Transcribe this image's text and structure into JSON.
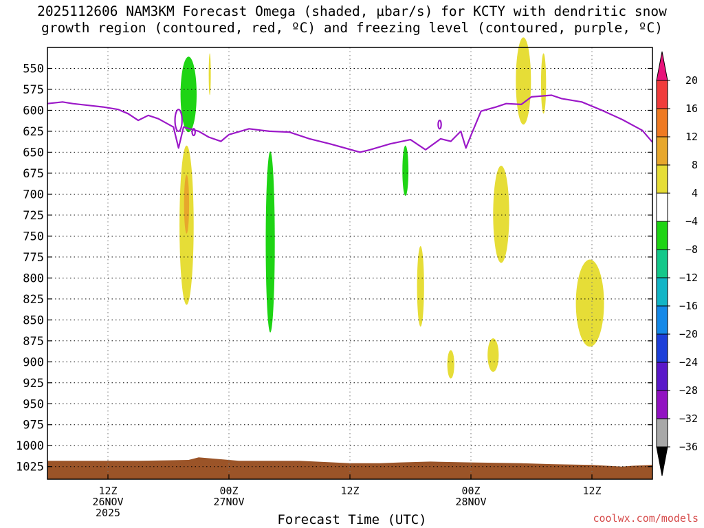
{
  "header": {
    "title_line1": "2025112606 NAM3KM Forecast Omega (shaded, µbar/s) for KCTY with dendritic snow",
    "title_line2": "growth region (contoured, red, ºC) and freezing level (contoured, purple, ºC)"
  },
  "footer": {
    "xaxis_title": "Forecast Time (UTC)",
    "credit": "coolwx.com/models"
  },
  "chart_data": {
    "type": "time-height cross-section",
    "title": "2025112606 NAM3KM Forecast Omega (shaded, µbar/s) for KCTY with dendritic snow growth region (contoured, red, ºC) and freezing level (contoured, purple, ºC)",
    "xlabel": "Forecast Time (UTC)",
    "ylabel": "",
    "x_range_hours": [
      0,
      60
    ],
    "x_ticks": [
      {
        "hour": 6,
        "lines": [
          "12Z",
          "26NOV",
          "2025"
        ]
      },
      {
        "hour": 18,
        "lines": [
          "00Z",
          "27NOV"
        ]
      },
      {
        "hour": 30,
        "lines": [
          "12Z"
        ]
      },
      {
        "hour": 42,
        "lines": [
          "00Z",
          "28NOV"
        ]
      },
      {
        "hour": 54,
        "lines": [
          "12Z"
        ]
      }
    ],
    "y_range_mb": [
      525,
      1040
    ],
    "y_ticks": [
      550,
      575,
      600,
      625,
      650,
      675,
      700,
      725,
      750,
      775,
      800,
      825,
      850,
      875,
      900,
      925,
      950,
      975,
      1000,
      1025
    ],
    "grid": "dotted",
    "colorbar": {
      "position": "right",
      "labels": [
        20,
        16,
        12,
        8,
        4,
        -4,
        -8,
        -12,
        -16,
        -20,
        -24,
        -28,
        -32,
        -36
      ],
      "colors": [
        "#e8137a",
        "#f03c3c",
        "#ef7a22",
        "#e7a72c",
        "#e6dd37",
        "#ffffff",
        "#1ed414",
        "#14c88a",
        "#12b5c6",
        "#1589e8",
        "#1d3fd9",
        "#5a18c9",
        "#9212c2",
        "#a8a8a8",
        "#000000"
      ]
    },
    "freezing_level": {
      "color": "#9b18c8",
      "points": [
        [
          0,
          592
        ],
        [
          1.5,
          590
        ],
        [
          2.5,
          592
        ],
        [
          5.5,
          596
        ],
        [
          7,
          599
        ],
        [
          8,
          604
        ],
        [
          9,
          612
        ],
        [
          10,
          606
        ],
        [
          11,
          610
        ],
        [
          12.5,
          620
        ],
        [
          13,
          645
        ],
        [
          13.5,
          620
        ],
        [
          15,
          625
        ],
        [
          16,
          632
        ],
        [
          17.2,
          637
        ],
        [
          18,
          629
        ],
        [
          20,
          622
        ],
        [
          22,
          625
        ],
        [
          24,
          626
        ],
        [
          26,
          634
        ],
        [
          28,
          640
        ],
        [
          31,
          650
        ],
        [
          32,
          647
        ],
        [
          34,
          640
        ],
        [
          36,
          635
        ],
        [
          37.5,
          647
        ],
        [
          39,
          634
        ],
        [
          40,
          637
        ],
        [
          41,
          625
        ],
        [
          41.5,
          645
        ],
        [
          42,
          630
        ],
        [
          43,
          601
        ],
        [
          44.5,
          596
        ],
        [
          45.5,
          592
        ],
        [
          47,
          593
        ],
        [
          48,
          584
        ],
        [
          50,
          582
        ],
        [
          51,
          586
        ],
        [
          53,
          590
        ],
        [
          55,
          600
        ],
        [
          57,
          611
        ],
        [
          59,
          624
        ],
        [
          60,
          638
        ]
      ],
      "rings": [
        {
          "t": 13.0,
          "p": 612,
          "rt": 0.35,
          "rp": 13
        },
        {
          "t": 14.5,
          "p": 626,
          "rt": 0.15,
          "rp": 4
        },
        {
          "t": 38.9,
          "p": 617,
          "rt": 0.15,
          "rp": 5
        }
      ]
    },
    "omega_regions": [
      {
        "value": -6,
        "color": "#1ed414",
        "cx": 14.0,
        "cp": 581,
        "rt": 0.8,
        "rp": 45
      },
      {
        "value": -6,
        "color": "#1ed414",
        "cx": 22.1,
        "cp": 757,
        "rt": 0.45,
        "rp": 108
      },
      {
        "value": -6,
        "color": "#1ed414",
        "cx": 35.5,
        "cp": 672,
        "rt": 0.3,
        "rp": 30
      },
      {
        "value": 6,
        "color": "#e6dd37",
        "cx": 13.8,
        "cp": 737,
        "rt": 0.7,
        "rp": 95
      },
      {
        "value": 10,
        "color": "#e7a72c",
        "cx": 13.8,
        "cp": 712,
        "rt": 0.25,
        "rp": 35
      },
      {
        "value": 6,
        "color": "#e6dd37",
        "cx": 16.1,
        "cp": 557,
        "rt": 0.1,
        "rp": 25
      },
      {
        "value": 6,
        "color": "#e6dd37",
        "cx": 37.0,
        "cp": 810,
        "rt": 0.35,
        "rp": 48
      },
      {
        "value": 6,
        "color": "#e6dd37",
        "cx": 40.0,
        "cp": 903,
        "rt": 0.35,
        "rp": 17
      },
      {
        "value": 6,
        "color": "#e6dd37",
        "cx": 45.0,
        "cp": 724,
        "rt": 0.8,
        "rp": 58
      },
      {
        "value": 6,
        "color": "#e6dd37",
        "cx": 44.2,
        "cp": 892,
        "rt": 0.55,
        "rp": 20
      },
      {
        "value": 6,
        "color": "#e6dd37",
        "cx": 47.2,
        "cp": 565,
        "rt": 0.75,
        "rp": 52
      },
      {
        "value": 6,
        "color": "#e6dd37",
        "cx": 49.2,
        "cp": 568,
        "rt": 0.25,
        "rp": 36
      },
      {
        "value": 6,
        "color": "#e6dd37",
        "cx": 53.8,
        "cp": 830,
        "rt": 1.4,
        "rp": 52
      }
    ],
    "terrain": {
      "color": "#9b5428",
      "top_mb": [
        [
          0,
          1018
        ],
        [
          9,
          1018
        ],
        [
          14,
          1017
        ],
        [
          15,
          1014
        ],
        [
          16,
          1015
        ],
        [
          19,
          1018
        ],
        [
          25,
          1018
        ],
        [
          30,
          1021
        ],
        [
          33,
          1021
        ],
        [
          35,
          1020
        ],
        [
          38,
          1019
        ],
        [
          42,
          1020
        ],
        [
          47,
          1021
        ],
        [
          50,
          1022
        ],
        [
          54,
          1023
        ],
        [
          57,
          1025
        ],
        [
          58,
          1024
        ],
        [
          60,
          1023
        ]
      ]
    }
  }
}
